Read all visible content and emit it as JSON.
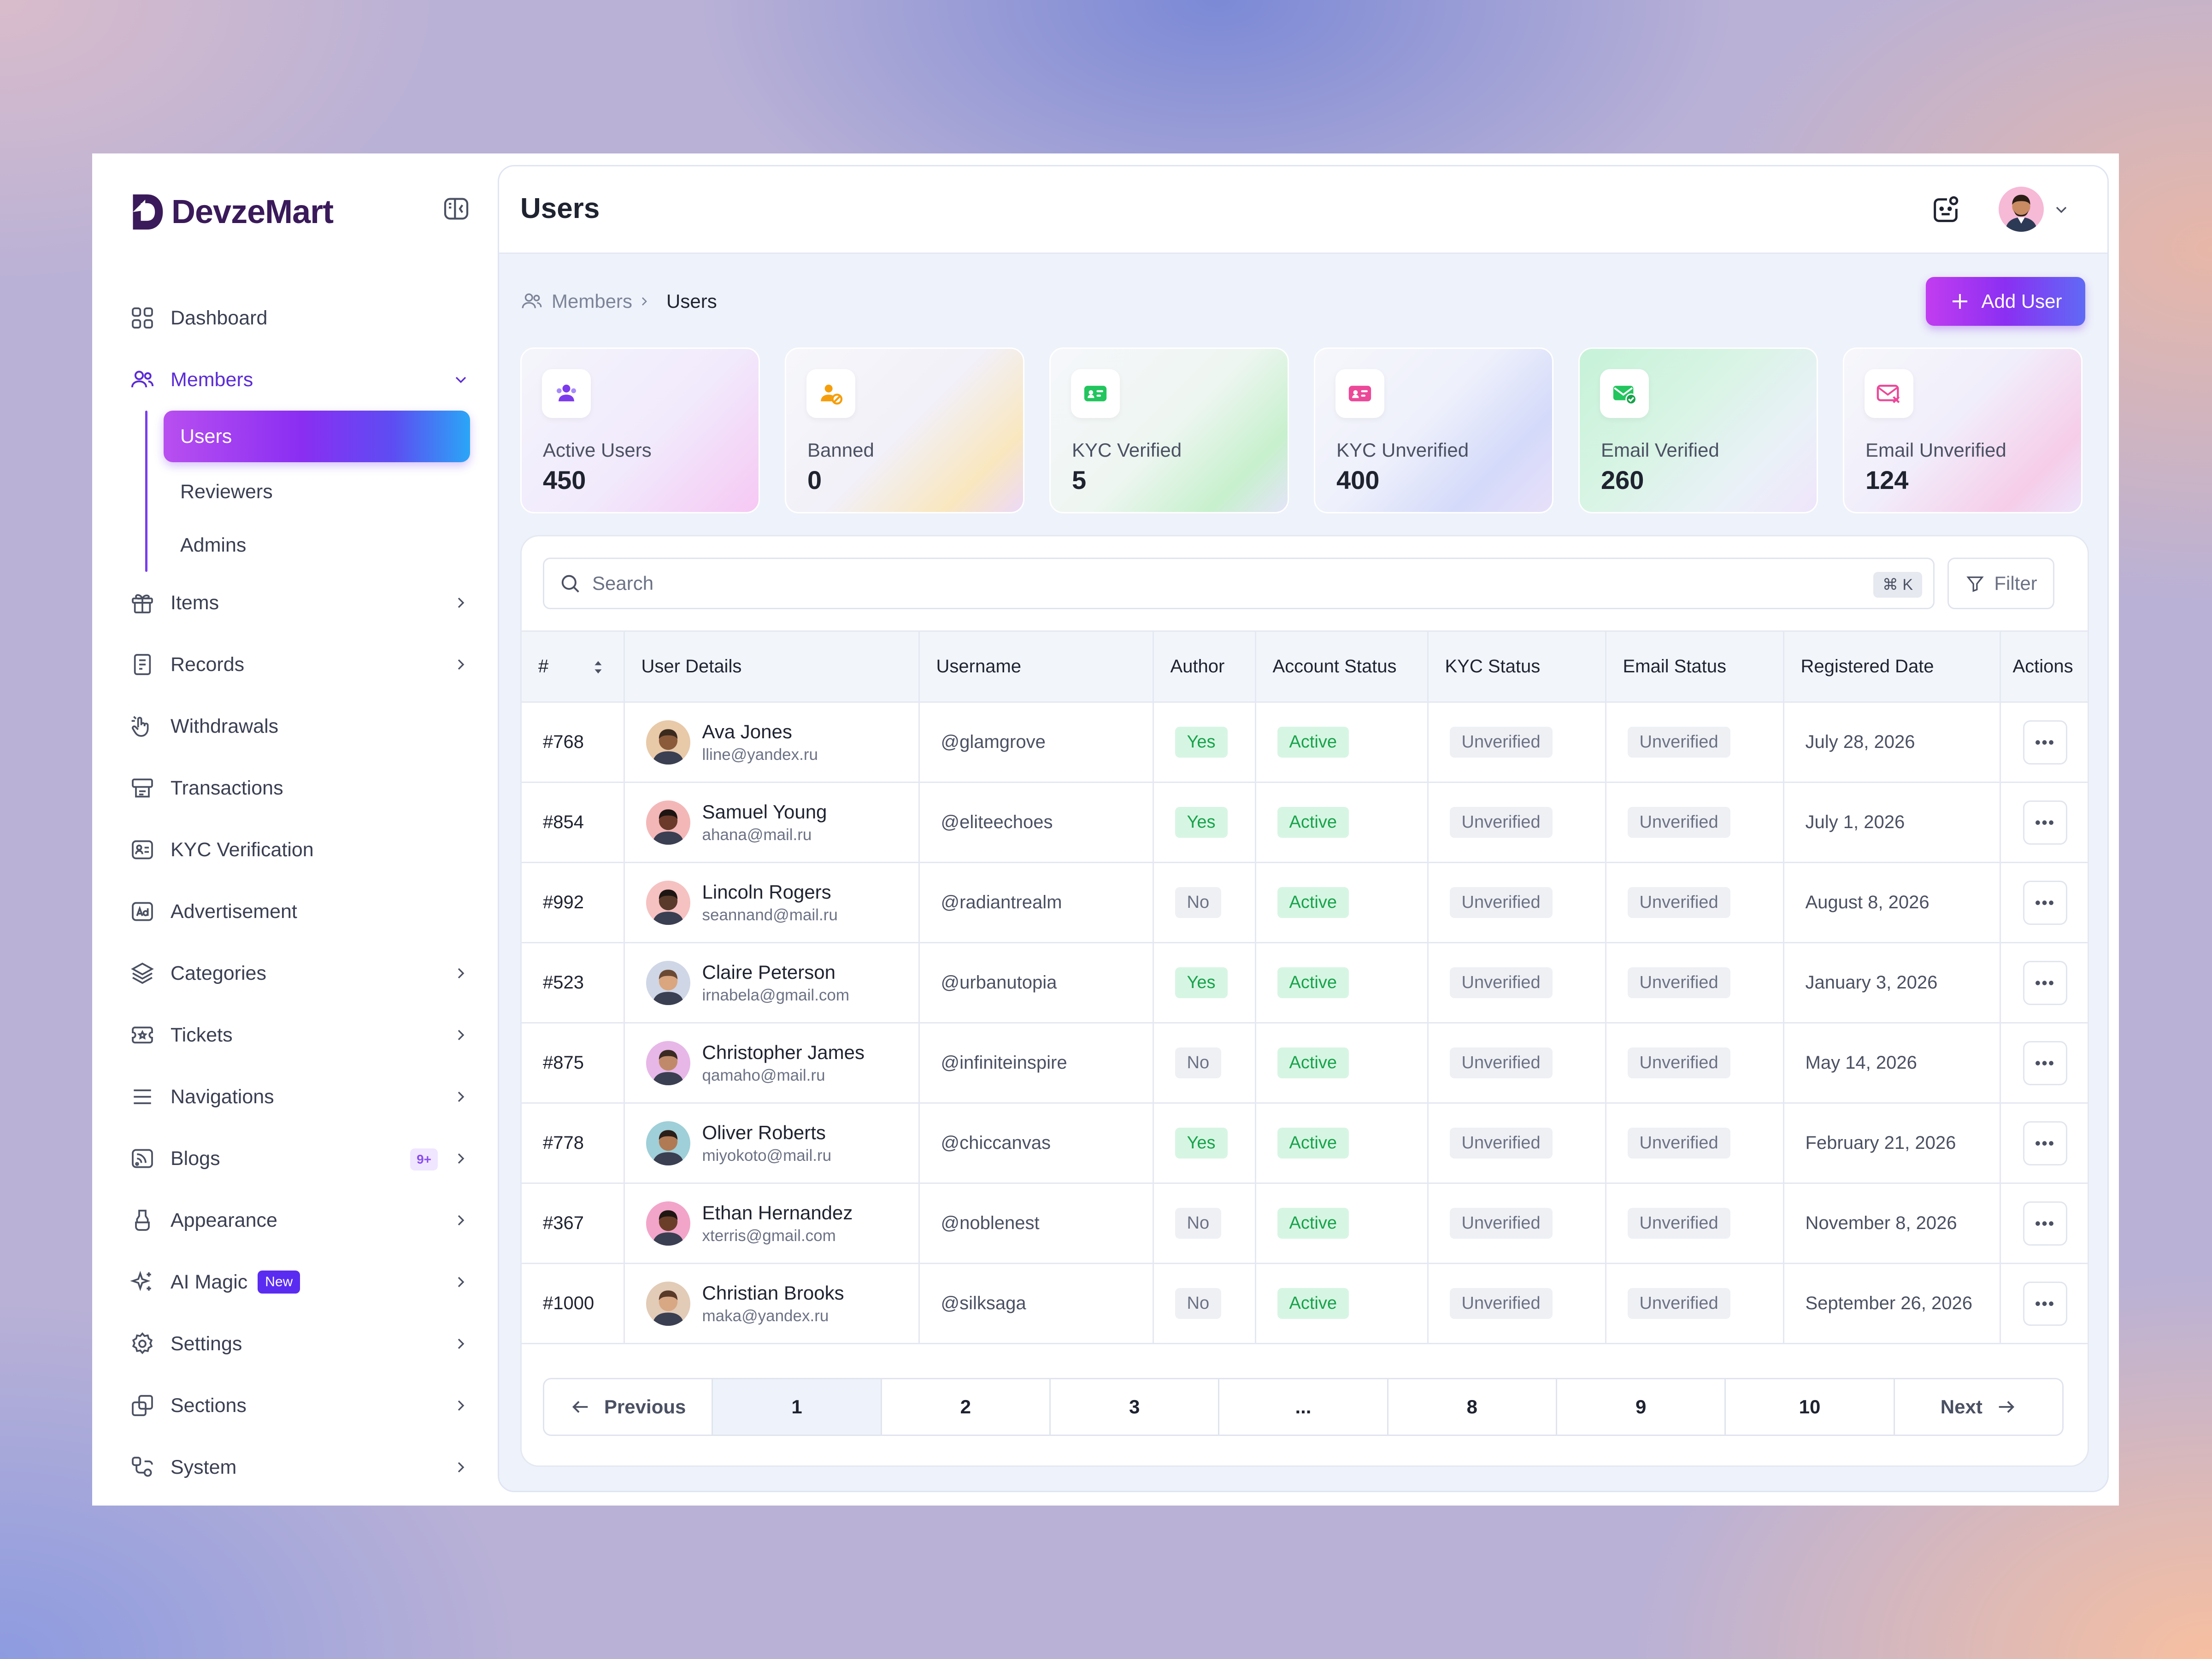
{
  "brand": {
    "name": "DevzeMart"
  },
  "sidebar": {
    "items": [
      {
        "label": "Dashboard",
        "icon": "grid-icon"
      },
      {
        "label": "Members",
        "icon": "users-icon",
        "expanded": true,
        "children": [
          {
            "label": "Users",
            "selected": true
          },
          {
            "label": "Reviewers"
          },
          {
            "label": "Admins"
          }
        ]
      },
      {
        "label": "Items",
        "icon": "gift-icon"
      },
      {
        "label": "Records",
        "icon": "file-icon"
      },
      {
        "label": "Withdrawals",
        "icon": "hand-icon"
      },
      {
        "label": "Transactions",
        "icon": "receipt-icon"
      },
      {
        "label": "KYC Verification",
        "icon": "id-card-icon"
      },
      {
        "label": "Advertisement",
        "icon": "ad-icon"
      },
      {
        "label": "Categories",
        "icon": "layers-icon"
      },
      {
        "label": "Tickets",
        "icon": "ticket-icon"
      },
      {
        "label": "Navigations",
        "icon": "menu-icon"
      },
      {
        "label": "Blogs",
        "icon": "rss-icon",
        "badge": "9+"
      },
      {
        "label": "Appearance",
        "icon": "paint-icon"
      },
      {
        "label": "AI Magic",
        "icon": "sparkle-icon",
        "badge": "New"
      },
      {
        "label": "Settings",
        "icon": "gear-icon"
      },
      {
        "label": "Sections",
        "icon": "copy-icon"
      },
      {
        "label": "System",
        "icon": "system-icon"
      }
    ]
  },
  "header": {
    "title": "Users"
  },
  "breadcrumb": {
    "parent": "Members",
    "current": "Users"
  },
  "add_button": {
    "label": "Add User"
  },
  "stats": [
    {
      "label": "Active Users",
      "value": "450",
      "icon": "users-icon",
      "color": "#7c3aed"
    },
    {
      "label": "Banned",
      "value": "0",
      "icon": "user-ban-icon",
      "color": "#f59e0b"
    },
    {
      "label": "KYC Verified",
      "value": "5",
      "icon": "id-check-icon",
      "color": "#22c55e"
    },
    {
      "label": "KYC Unverified",
      "value": "400",
      "icon": "id-x-icon",
      "color": "#ec4899"
    },
    {
      "label": "Email Verified",
      "value": "260",
      "icon": "mail-check-icon",
      "color": "#22c55e"
    },
    {
      "label": "Email Unverified",
      "value": "124",
      "icon": "mail-x-icon",
      "color": "#ec4899"
    }
  ],
  "search": {
    "placeholder": "Search",
    "shortcut": "⌘ K"
  },
  "filter": {
    "label": "Filter"
  },
  "table": {
    "columns": [
      "#",
      "User Details",
      "Username",
      "Author",
      "Account Status",
      "KYC Status",
      "Email Status",
      "Registered Date",
      "Actions"
    ],
    "rows": [
      {
        "id": "#768",
        "name": "Ava Jones",
        "email": "lline@yandex.ru",
        "username": "@glamgrove",
        "author": "Yes",
        "account": "Active",
        "kyc": "Unverified",
        "email_status": "Unverified",
        "date": "July 28, 2026"
      },
      {
        "id": "#854",
        "name": "Samuel Young",
        "email": "ahana@mail.ru",
        "username": "@eliteechoes",
        "author": "Yes",
        "account": "Active",
        "kyc": "Unverified",
        "email_status": "Unverified",
        "date": "July 1, 2026"
      },
      {
        "id": "#992",
        "name": "Lincoln Rogers",
        "email": "seannand@mail.ru",
        "username": "@radiantrealm",
        "author": "No",
        "account": "Active",
        "kyc": "Unverified",
        "email_status": "Unverified",
        "date": "August 8, 2026"
      },
      {
        "id": "#523",
        "name": "Claire Peterson",
        "email": "irnabela@gmail.com",
        "username": "@urbanutopia",
        "author": "Yes",
        "account": "Active",
        "kyc": "Unverified",
        "email_status": "Unverified",
        "date": "January 3, 2026"
      },
      {
        "id": "#875",
        "name": "Christopher James",
        "email": "qamaho@mail.ru",
        "username": "@infiniteinspire",
        "author": "No",
        "account": "Active",
        "kyc": "Unverified",
        "email_status": "Unverified",
        "date": "May 14, 2026"
      },
      {
        "id": "#778",
        "name": "Oliver Roberts",
        "email": "miyokoto@mail.ru",
        "username": "@chiccanvas",
        "author": "Yes",
        "account": "Active",
        "kyc": "Unverified",
        "email_status": "Unverified",
        "date": "February 21, 2026"
      },
      {
        "id": "#367",
        "name": "Ethan Hernandez",
        "email": "xterris@gmail.com",
        "username": "@noblenest",
        "author": "No",
        "account": "Active",
        "kyc": "Unverified",
        "email_status": "Unverified",
        "date": "November 8, 2026"
      },
      {
        "id": "#1000",
        "name": "Christian Brooks",
        "email": "maka@yandex.ru",
        "username": "@silksaga",
        "author": "No",
        "account": "Active",
        "kyc": "Unverified",
        "email_status": "Unverified",
        "date": "September 26, 2026"
      }
    ],
    "row_action_icon": "more-icon"
  },
  "pagination": {
    "previous": "Previous",
    "next": "Next",
    "pages": [
      "1",
      "2",
      "3",
      "...",
      "8",
      "9",
      "10"
    ],
    "current": "1"
  }
}
